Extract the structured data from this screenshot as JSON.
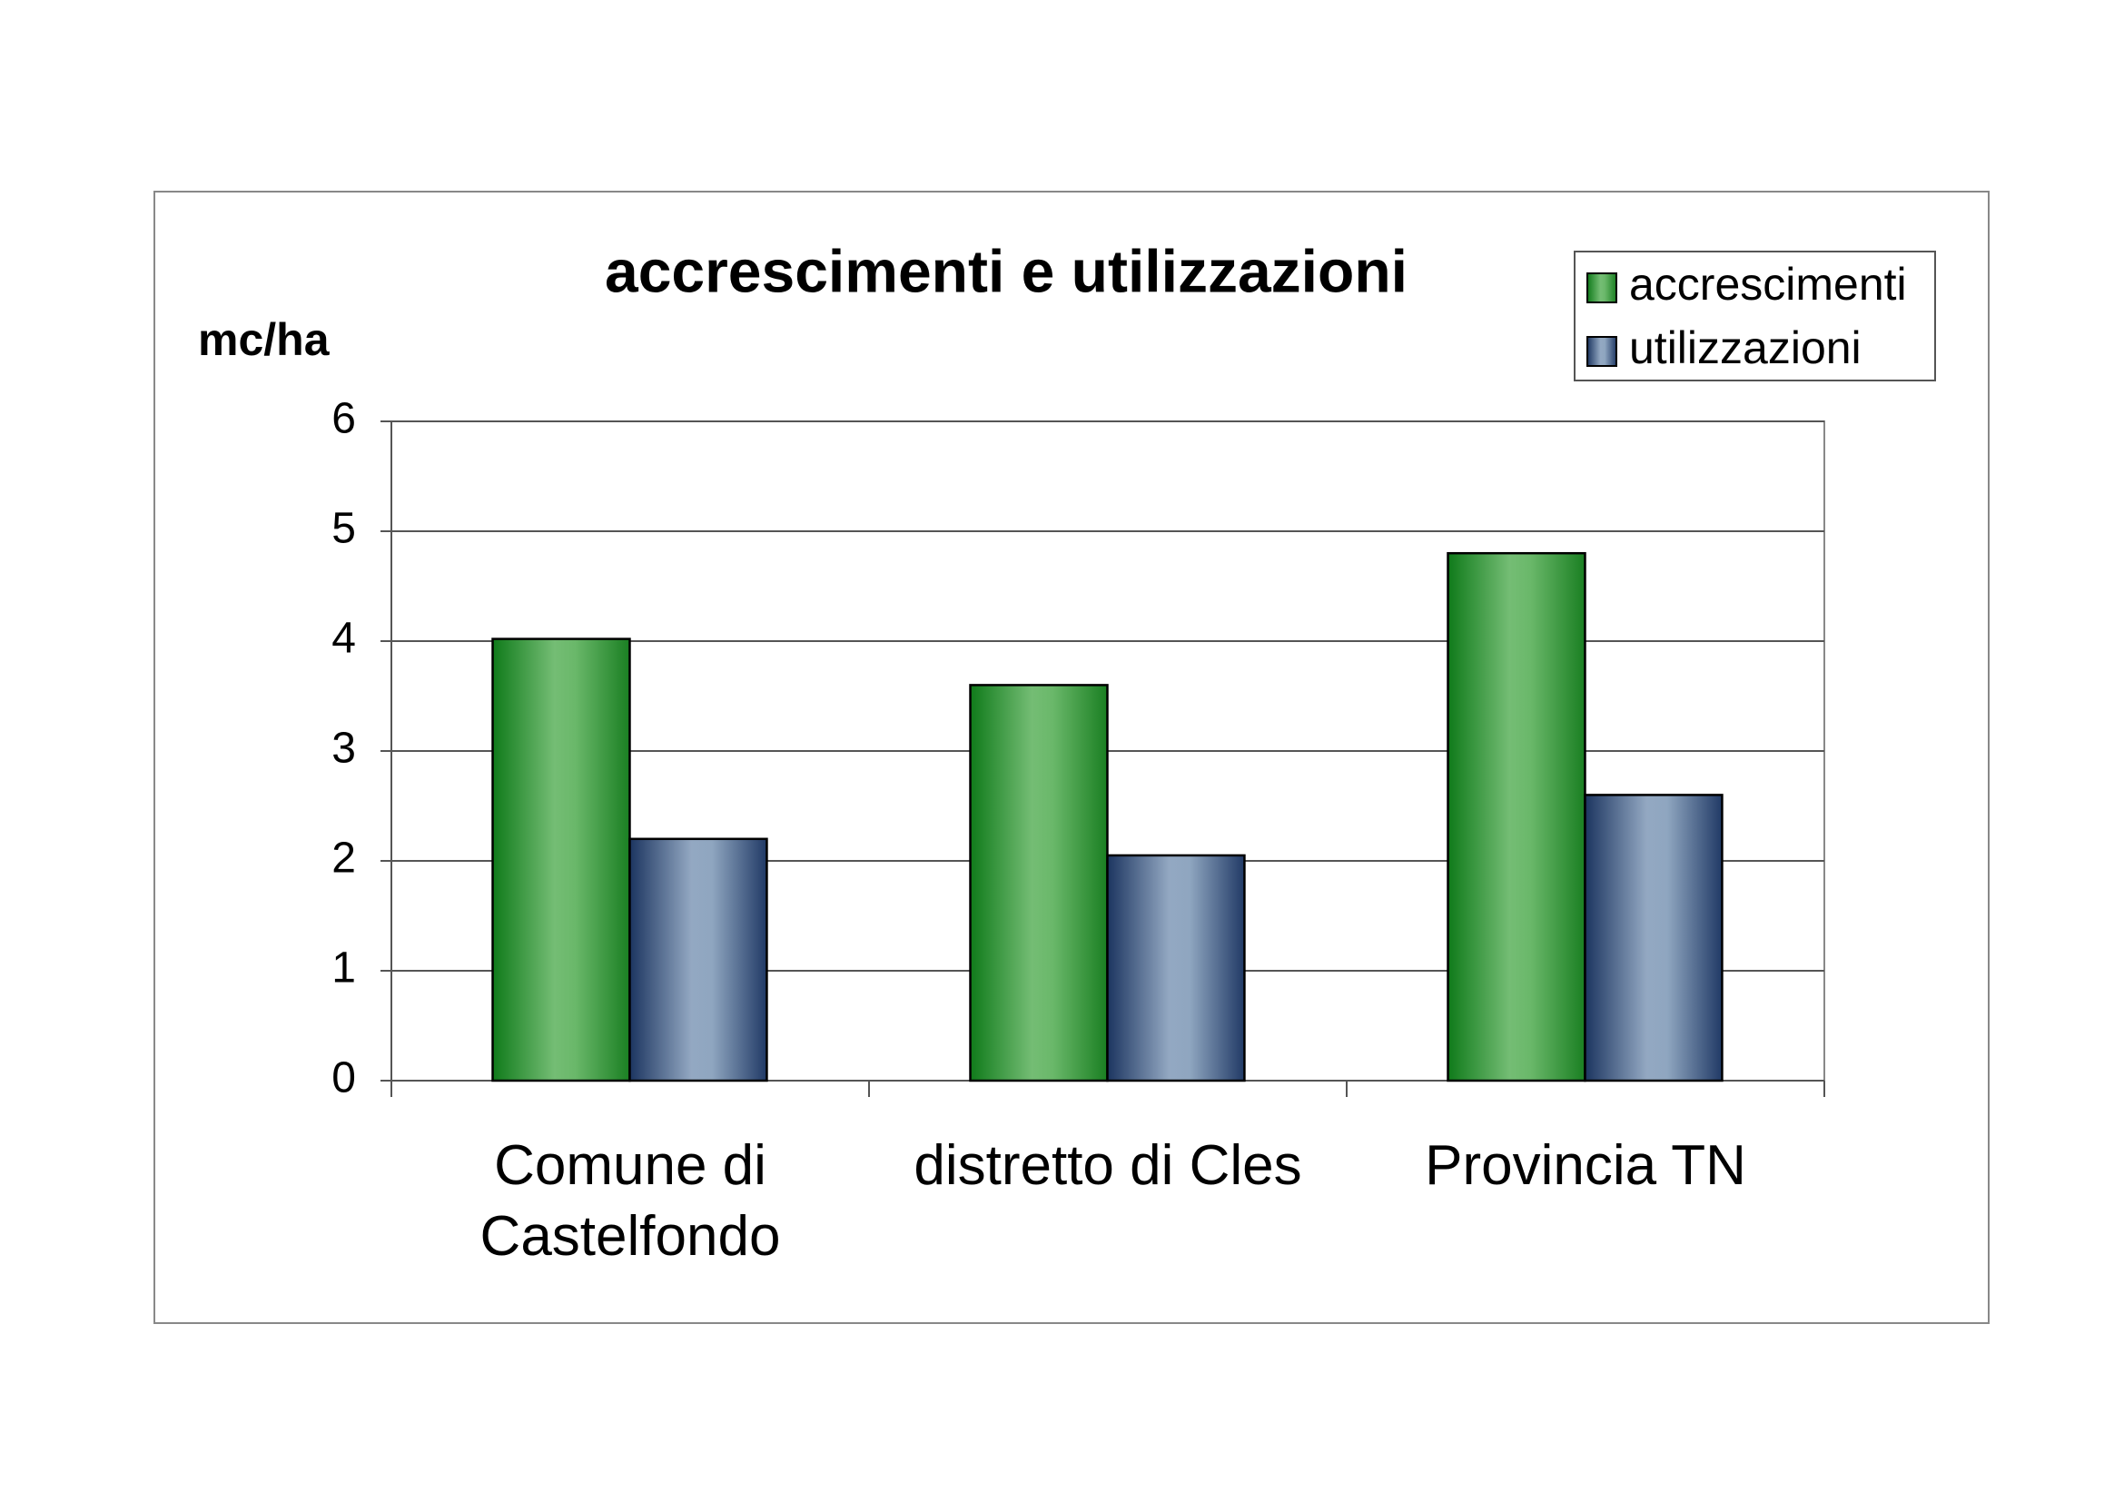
{
  "chart_data": {
    "type": "bar",
    "title": "accrescimenti e utilizzazioni",
    "y_label": "mc/ha",
    "categories": [
      "Comune di Castelfondo",
      "distretto di Cles",
      "Provincia TN"
    ],
    "series": [
      {
        "name": "accrescimenti",
        "color": "#6ab86a",
        "values": [
          4.02,
          3.6,
          4.8
        ]
      },
      {
        "name": "utilizzazioni",
        "color": "#8fa6c0",
        "values": [
          2.2,
          2.05,
          2.6
        ]
      }
    ],
    "ylim": [
      0,
      6
    ],
    "yticks": [
      0,
      1,
      2,
      3,
      4,
      5,
      6
    ],
    "grid": true,
    "legend": "top-right"
  }
}
